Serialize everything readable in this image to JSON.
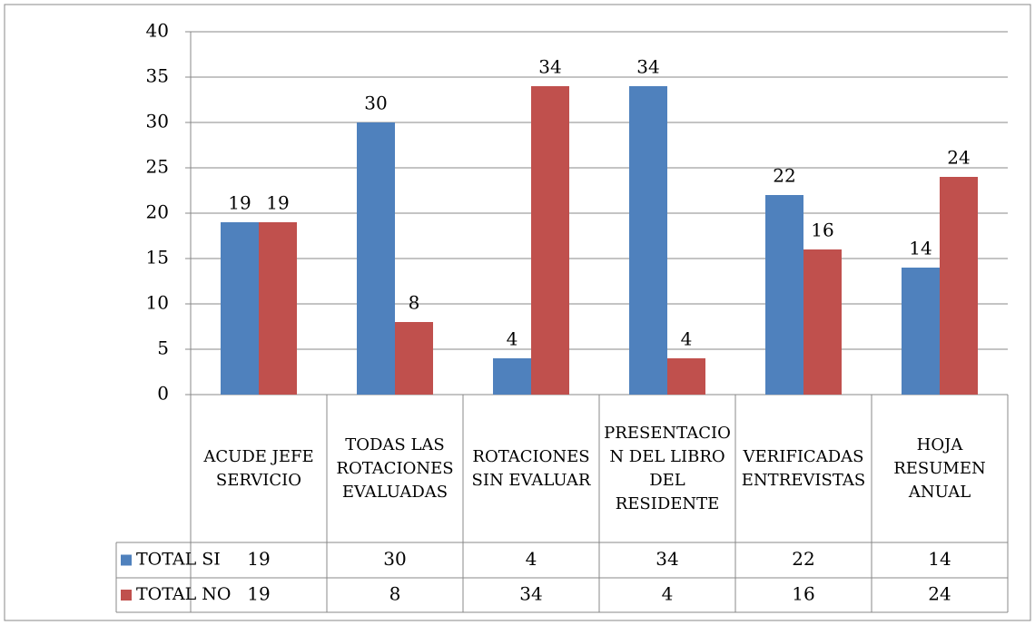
{
  "chart_data": {
    "type": "bar",
    "categories": [
      "ACUDE JEFE SERVICIO",
      "TODAS LAS ROTACIONES EVALUADAS",
      "ROTACIONES SIN EVALUAR",
      "PRESENTACION DEL LIBRO DEL RESIDENTE",
      "VERIFICADAS ENTREVISTAS",
      "HOJA RESUMEN ANUAL"
    ],
    "series": [
      {
        "name": "TOTAL SI",
        "color": "#4f81bd",
        "values": [
          19,
          30,
          4,
          34,
          22,
          14
        ]
      },
      {
        "name": "TOTAL NO",
        "color": "#c0504d",
        "values": [
          19,
          8,
          34,
          4,
          16,
          24
        ]
      }
    ],
    "ylim": [
      0,
      40
    ],
    "yticks": [
      0,
      5,
      10,
      15,
      20,
      25,
      30,
      35,
      40
    ],
    "grid": true,
    "legend": "table"
  }
}
